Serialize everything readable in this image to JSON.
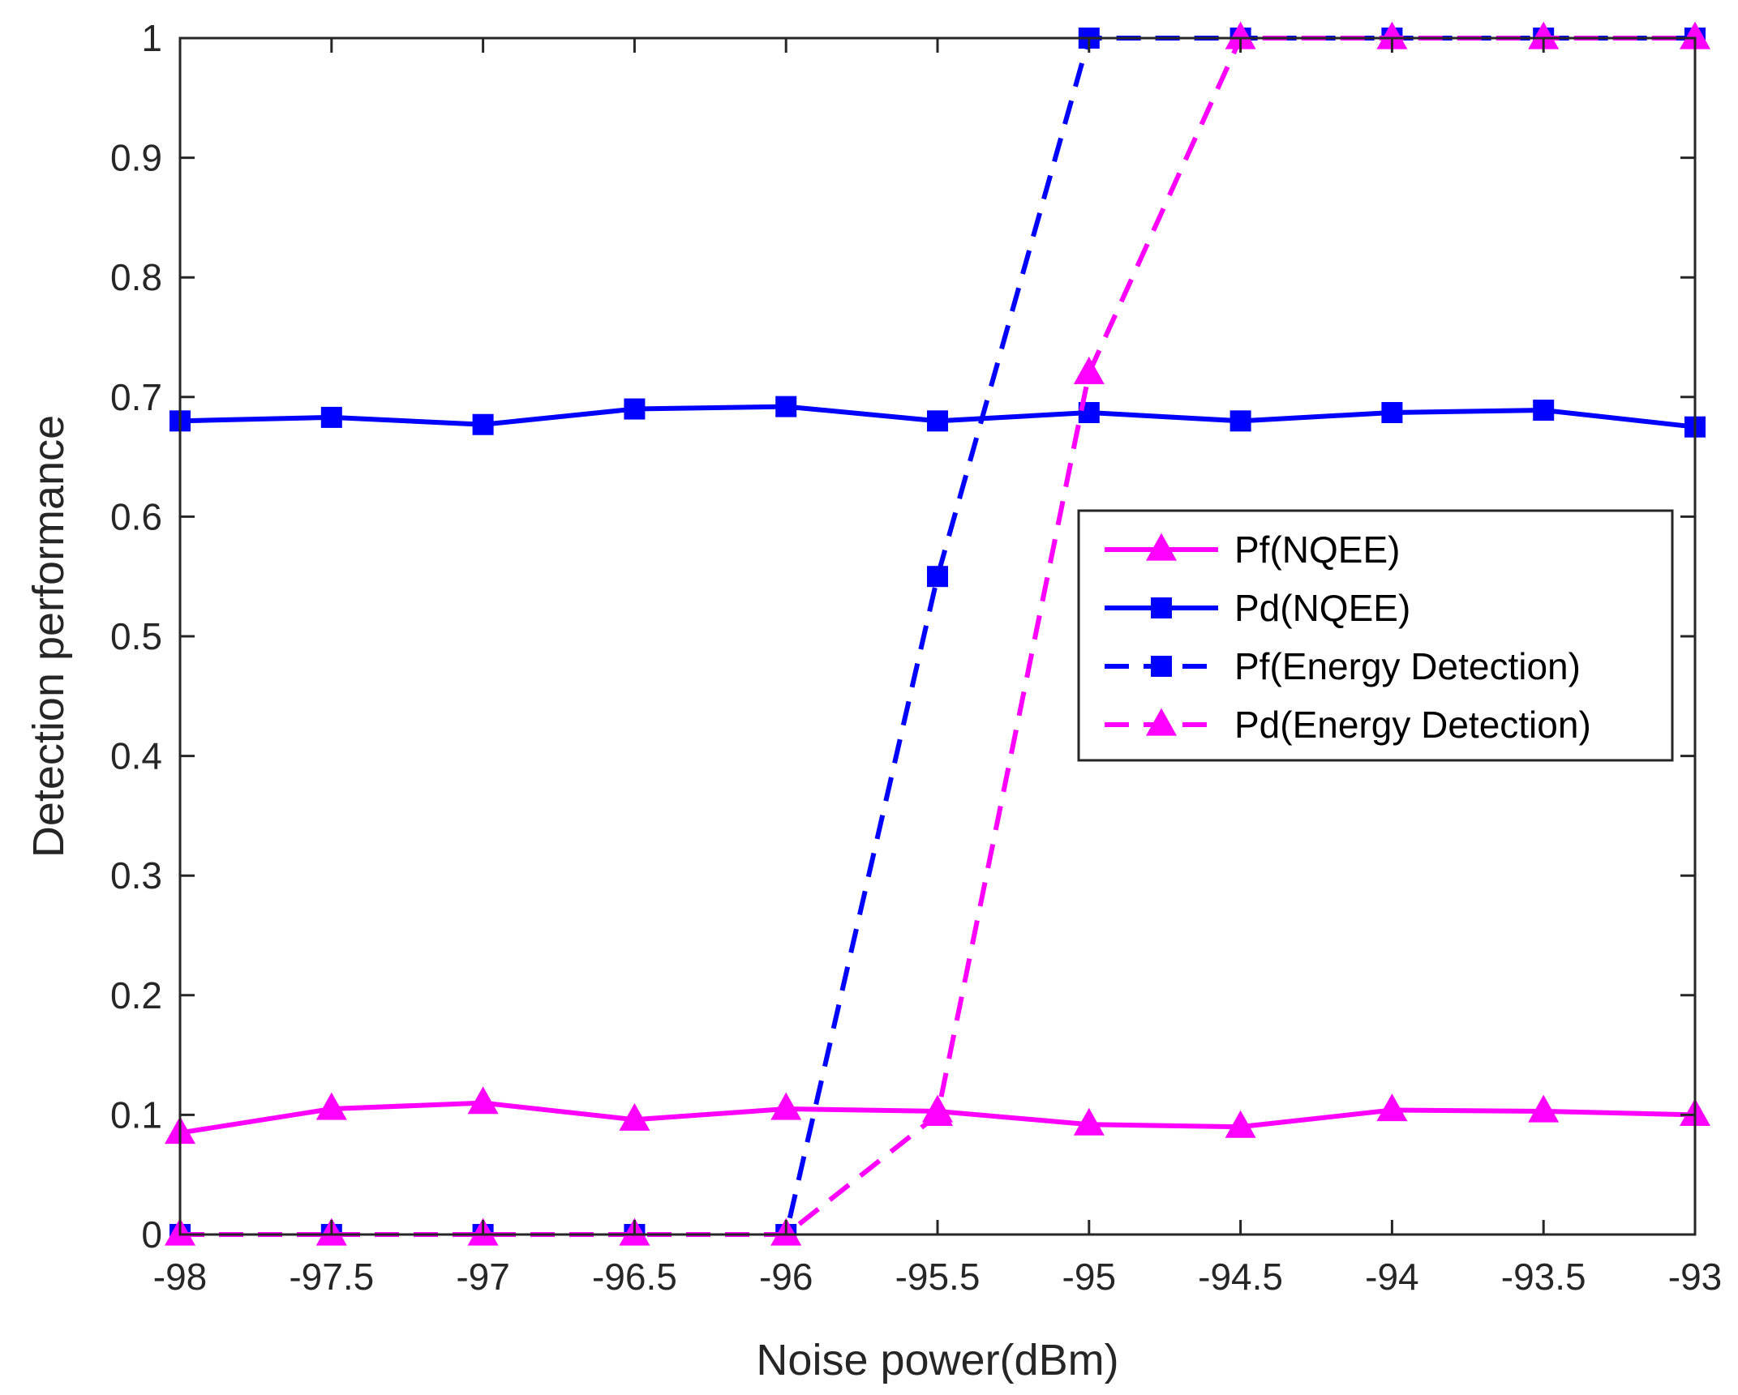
{
  "colors": {
    "magenta": "#ff00ff",
    "blue": "#0000ff",
    "axis": "#262626",
    "background": "#ffffff"
  },
  "chart_data": {
    "type": "line",
    "title": "",
    "xlabel": "Noise power(dBm)",
    "ylabel": "Detection performance",
    "xlim": [
      -98,
      -93
    ],
    "ylim": [
      0,
      1
    ],
    "x": [
      -98,
      -97.5,
      -97,
      -96.5,
      -96,
      -95.5,
      -95,
      -94.5,
      -94,
      -93.5,
      -93
    ],
    "xticks": [
      -98,
      -97.5,
      -97,
      -96.5,
      -96,
      -95.5,
      -95,
      -94.5,
      -94,
      -93.5,
      -93
    ],
    "xtick_labels": [
      "-98",
      "-97.5",
      "-97",
      "-96.5",
      "-96",
      "-95.5",
      "-95",
      "-94.5",
      "-94",
      "-93.5",
      "-93"
    ],
    "yticks": [
      0,
      0.1,
      0.2,
      0.3,
      0.4,
      0.5,
      0.6,
      0.7,
      0.8,
      0.9,
      1
    ],
    "ytick_labels": [
      "0",
      "0.1",
      "0.2",
      "0.3",
      "0.4",
      "0.5",
      "0.6",
      "0.7",
      "0.8",
      "0.9",
      "1"
    ],
    "grid": false,
    "legend_position": "right-middle",
    "series": [
      {
        "name": "Pf(NQEE)",
        "color": "#ff00ff",
        "line_style": "solid",
        "marker": "triangle",
        "values": [
          0.085,
          0.105,
          0.11,
          0.096,
          0.105,
          0.103,
          0.092,
          0.09,
          0.104,
          0.103,
          0.1
        ]
      },
      {
        "name": "Pd(NQEE)",
        "color": "#0000ff",
        "line_style": "solid",
        "marker": "square",
        "values": [
          0.68,
          0.683,
          0.677,
          0.69,
          0.692,
          0.68,
          0.687,
          0.68,
          0.687,
          0.689,
          0.675
        ]
      },
      {
        "name": "Pf(Energy Detection)",
        "color": "#0000ff",
        "line_style": "dashed",
        "marker": "square",
        "values": [
          0,
          0,
          0,
          0,
          0,
          0.55,
          1,
          1,
          1,
          1,
          1
        ]
      },
      {
        "name": "Pd(Energy Detection)",
        "color": "#ff00ff",
        "line_style": "dashed",
        "marker": "triangle",
        "values": [
          0,
          0,
          0,
          0,
          0,
          0.1,
          0.72,
          1,
          1,
          1,
          1
        ]
      }
    ]
  }
}
